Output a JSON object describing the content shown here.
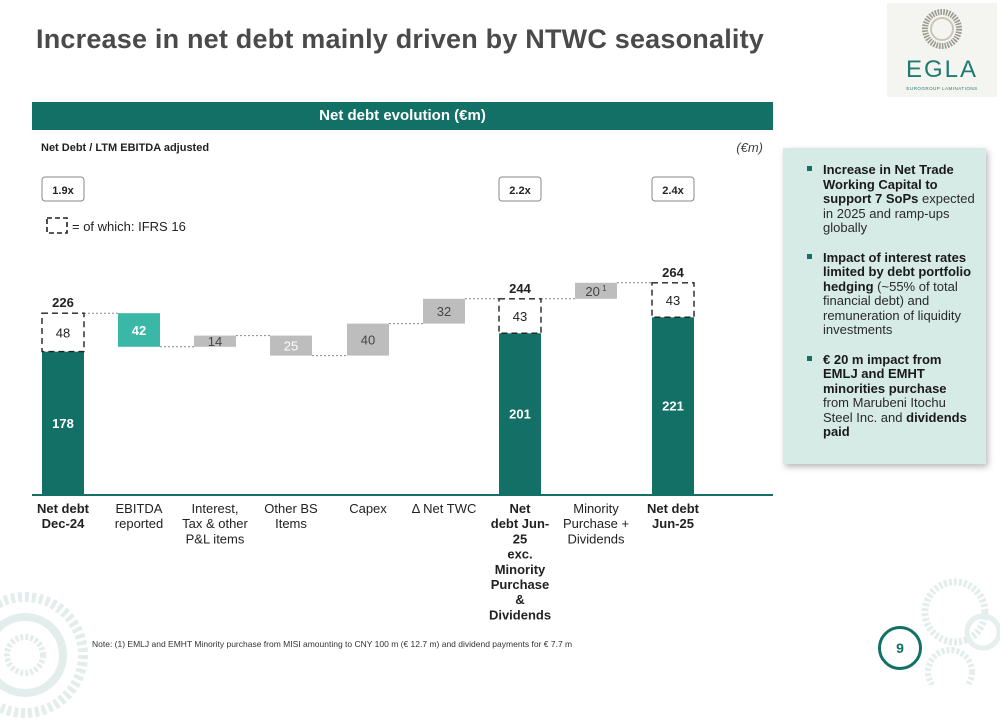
{
  "title": "Increase in net debt mainly driven by NTWC seasonality",
  "logo": {
    "name": "EGLA",
    "tagline": "EUROGROUP LAMINATIONS"
  },
  "banner": "Net debt evolution (€m)",
  "chart_data": {
    "type": "bar",
    "subtitle": "Net Debt / LTM EBITDA adjusted",
    "unit_label": "(€m)",
    "ifrs_legend": "= of which: IFRS 16",
    "colors": {
      "total": "#127066",
      "increase": "#3bb7a8",
      "neutral": "#bdbdbd",
      "axis": "#127066"
    },
    "categories": [
      "Net debt Dec-24",
      "EBITDA reported",
      "Interest, Tax & other P&L items",
      "Other BS Items",
      "Capex",
      "Δ Net TWC",
      "Net debt Jun-25 exc. Minority Purchase & Dividends",
      "Minority Purchase + Dividends",
      "Net debt Jun-25"
    ],
    "category_lines": [
      [
        "Net debt",
        "Dec-24"
      ],
      [
        "EBITDA",
        "reported"
      ],
      [
        "Interest,",
        "Tax & other",
        "P&L items"
      ],
      [
        "Other BS",
        "Items"
      ],
      [
        "Capex"
      ],
      [
        "Δ Net TWC"
      ],
      [
        "Net",
        "debt Jun-",
        "25",
        "exc.",
        "Minority",
        "Purchase",
        "&",
        "Dividends"
      ],
      [
        "Minority",
        "Purchase +",
        "Dividends"
      ],
      [
        "Net debt",
        "Jun-25"
      ]
    ],
    "category_bold": [
      true,
      false,
      false,
      false,
      false,
      false,
      true,
      false,
      true
    ],
    "bars": [
      {
        "kind": "total",
        "base": 0,
        "top": 226,
        "main": 178,
        "ifrs": 48,
        "main_label": "178",
        "ifrs_label": "48",
        "total_label": "226",
        "ratio": "1.9x"
      },
      {
        "kind": "step",
        "color": "increase",
        "low": 184,
        "high": 226,
        "label": "42"
      },
      {
        "kind": "step",
        "color": "neutral",
        "low": 184,
        "high": 198,
        "label": "14"
      },
      {
        "kind": "step",
        "color": "neutral",
        "low": 173,
        "high": 198,
        "label": "25",
        "label_color": "increase"
      },
      {
        "kind": "step",
        "color": "neutral",
        "low": 173,
        "high": 213,
        "label": "40"
      },
      {
        "kind": "step",
        "color": "neutral",
        "low": 213,
        "high": 244,
        "label": "32"
      },
      {
        "kind": "total",
        "base": 0,
        "top": 244,
        "main": 201,
        "ifrs": 43,
        "main_label": "201",
        "ifrs_label": "43",
        "total_label": "244",
        "ratio": "2.2x"
      },
      {
        "kind": "step",
        "color": "neutral",
        "low": 244,
        "high": 264,
        "label": "20",
        "sup": "1"
      },
      {
        "kind": "total",
        "base": 0,
        "top": 264,
        "main": 221,
        "ifrs": 43,
        "main_label": "221",
        "ifrs_label": "43",
        "total_label": "264",
        "ratio": "2.4x"
      }
    ]
  },
  "sidebar": {
    "items": [
      {
        "bold": "Increase in Net Trade Working Capital to support 7 SoPs",
        "text": "expected in 2025 and ramp-ups globally",
        "bold2": ""
      },
      {
        "bold": "Impact of interest rates limited by debt portfolio hedging",
        "text": "(~55% of total financial debt) and remuneration of liquidity investments",
        "bold2": ""
      },
      {
        "bold": "€ 20 m impact from EMLJ and EMHT minorities purchase",
        "text": "from Marubeni Itochu Steel Inc. and",
        "bold2": "dividends paid"
      }
    ]
  },
  "footnote": "Note: (1) EMLJ and EMHT Minority purchase from MISI amounting to CNY 100 m (€ 12.7 m) and dividend payments for € 7.7 m",
  "page_number": "9"
}
